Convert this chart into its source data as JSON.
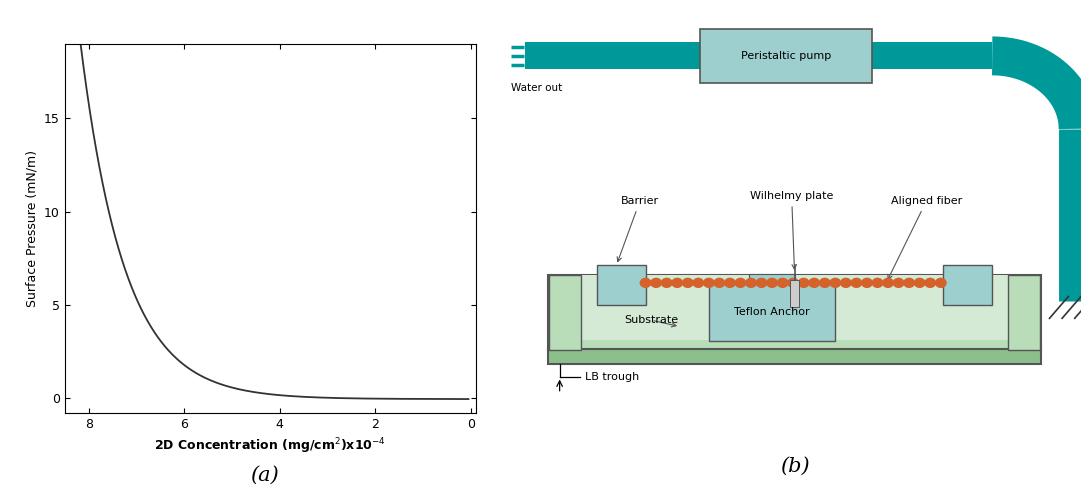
{
  "fig_width": 10.81,
  "fig_height": 4.86,
  "panel_a": {
    "xlabel": "2D Concentration (mg/cm$^2$)x10$^{-4}$",
    "ylabel": "Surface Pressure (mN/m)",
    "xlim": [
      8.5,
      -0.1
    ],
    "ylim": [
      -0.8,
      19
    ],
    "yticks": [
      0,
      5,
      10,
      15
    ],
    "xticks": [
      8,
      6,
      4,
      2,
      0
    ],
    "label": "(a)",
    "curve_color": "#333333"
  },
  "panel_b": {
    "label": "(b)",
    "teal": "#009999",
    "light_blue": "#9ecfcf",
    "light_green": "#b8ddb8",
    "green_dark": "#8bbf8b",
    "orange": "#d4622a",
    "text_color": "#000000"
  }
}
